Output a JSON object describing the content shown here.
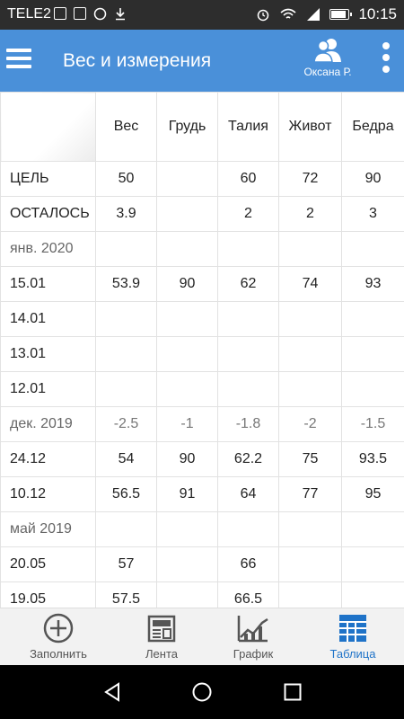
{
  "status_bar": {
    "carrier": "TELE2",
    "time": "10:15"
  },
  "app_bar": {
    "title": "Вес и измерения",
    "user_name": "Оксана Р."
  },
  "table": {
    "columns": [
      "Вес",
      "Грудь",
      "Талия",
      "Живот",
      "Бедра"
    ],
    "rows": [
      {
        "label": "ЦЕЛЬ",
        "kind": "goal",
        "values": [
          "50",
          "",
          "60",
          "72",
          "90"
        ]
      },
      {
        "label": "ОСТАЛОСЬ",
        "kind": "goal",
        "values": [
          "3.9",
          "",
          "2",
          "2",
          "3"
        ]
      },
      {
        "label": "янв. 2020",
        "kind": "month",
        "values": [
          "",
          "",
          "",
          "",
          ""
        ]
      },
      {
        "label": "15.01",
        "kind": "day",
        "values": [
          "53.9",
          "90",
          "62",
          "74",
          "93"
        ]
      },
      {
        "label": "14.01",
        "kind": "day",
        "values": [
          "",
          "",
          "",
          "",
          ""
        ]
      },
      {
        "label": "13.01",
        "kind": "day",
        "values": [
          "",
          "",
          "",
          "",
          ""
        ]
      },
      {
        "label": "12.01",
        "kind": "day",
        "values": [
          "",
          "",
          "",
          "",
          ""
        ]
      },
      {
        "label": "дек. 2019",
        "kind": "month",
        "values": [
          "-2.5",
          "-1",
          "-1.8",
          "-2",
          "-1.5"
        ]
      },
      {
        "label": "24.12",
        "kind": "day",
        "values": [
          "54",
          "90",
          "62.2",
          "75",
          "93.5"
        ]
      },
      {
        "label": "10.12",
        "kind": "day",
        "values": [
          "56.5",
          "91",
          "64",
          "77",
          "95"
        ]
      },
      {
        "label": "май 2019",
        "kind": "month",
        "values": [
          "",
          "",
          "",
          "",
          ""
        ]
      },
      {
        "label": "20.05",
        "kind": "day",
        "values": [
          "57",
          "",
          "66",
          "",
          ""
        ]
      },
      {
        "label": "19.05",
        "kind": "day",
        "values": [
          "57.5",
          "",
          "66.5",
          "",
          ""
        ]
      }
    ]
  },
  "bottom_nav": {
    "items": [
      {
        "label": "Заполнить",
        "icon": "plus-circle-icon",
        "active": false
      },
      {
        "label": "Лента",
        "icon": "feed-icon",
        "active": false
      },
      {
        "label": "График",
        "icon": "chart-icon",
        "active": false
      },
      {
        "label": "Таблица",
        "icon": "table-icon",
        "active": true
      }
    ]
  },
  "colors": {
    "app_bar": "#4a90d9",
    "active_tab": "#1f73c8",
    "status_bar": "#2d2d2d"
  }
}
